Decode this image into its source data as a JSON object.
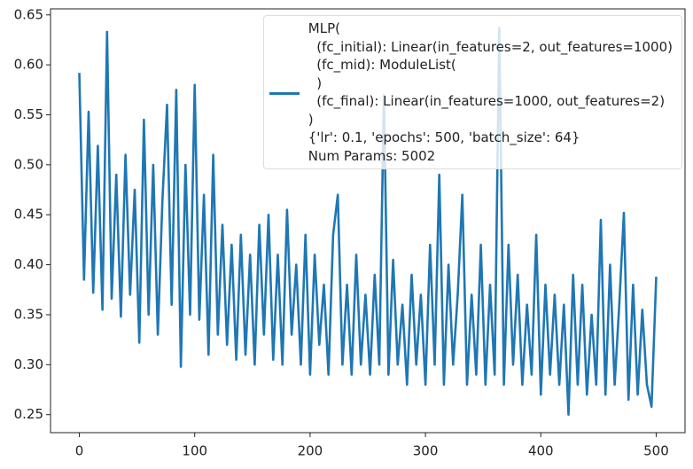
{
  "chart_data": {
    "type": "line",
    "x": [
      0,
      4,
      8,
      12,
      16,
      20,
      24,
      28,
      32,
      36,
      40,
      44,
      48,
      52,
      56,
      60,
      64,
      68,
      72,
      76,
      80,
      84,
      88,
      92,
      96,
      100,
      104,
      108,
      112,
      116,
      120,
      124,
      128,
      132,
      136,
      140,
      144,
      148,
      152,
      156,
      160,
      164,
      168,
      172,
      176,
      180,
      184,
      188,
      192,
      196,
      200,
      204,
      208,
      212,
      216,
      220,
      224,
      228,
      232,
      236,
      240,
      244,
      248,
      252,
      256,
      260,
      264,
      268,
      272,
      276,
      280,
      284,
      288,
      292,
      296,
      300,
      304,
      308,
      312,
      316,
      320,
      324,
      328,
      332,
      336,
      340,
      344,
      348,
      352,
      356,
      360,
      364,
      368,
      372,
      376,
      380,
      384,
      388,
      392,
      396,
      400,
      404,
      408,
      412,
      416,
      420,
      424,
      428,
      432,
      436,
      440,
      444,
      448,
      452,
      456,
      460,
      464,
      468,
      472,
      476,
      480,
      484,
      488,
      492,
      496,
      500
    ],
    "series": [
      {
        "name": "MLP(\n  (fc_initial): Linear(in_features=2, out_features=1000)\n  (fc_mid): ModuleList(\n  )\n  (fc_final): Linear(in_features=1000, out_features=2)\n)\n{'lr': 0.1, 'epochs': 500, 'batch_size': 64}\nNum Params: 5002",
        "color": "#1f77b4",
        "values": [
          0.592,
          0.385,
          0.553,
          0.372,
          0.519,
          0.355,
          0.633,
          0.366,
          0.49,
          0.348,
          0.51,
          0.37,
          0.475,
          0.322,
          0.545,
          0.35,
          0.5,
          0.33,
          0.465,
          0.56,
          0.36,
          0.575,
          0.298,
          0.5,
          0.35,
          0.58,
          0.345,
          0.47,
          0.31,
          0.51,
          0.33,
          0.44,
          0.32,
          0.42,
          0.305,
          0.43,
          0.31,
          0.41,
          0.3,
          0.44,
          0.33,
          0.45,
          0.305,
          0.41,
          0.3,
          0.455,
          0.33,
          0.4,
          0.3,
          0.43,
          0.29,
          0.41,
          0.32,
          0.38,
          0.29,
          0.43,
          0.47,
          0.3,
          0.38,
          0.29,
          0.41,
          0.3,
          0.37,
          0.29,
          0.39,
          0.3,
          0.57,
          0.29,
          0.405,
          0.3,
          0.36,
          0.28,
          0.39,
          0.3,
          0.37,
          0.28,
          0.42,
          0.3,
          0.49,
          0.28,
          0.4,
          0.3,
          0.37,
          0.47,
          0.28,
          0.37,
          0.29,
          0.42,
          0.28,
          0.38,
          0.29,
          0.637,
          0.28,
          0.42,
          0.3,
          0.39,
          0.28,
          0.36,
          0.29,
          0.43,
          0.27,
          0.38,
          0.29,
          0.37,
          0.28,
          0.36,
          0.25,
          0.39,
          0.28,
          0.38,
          0.27,
          0.35,
          0.28,
          0.445,
          0.27,
          0.4,
          0.28,
          0.36,
          0.452,
          0.265,
          0.38,
          0.27,
          0.355,
          0.28,
          0.258,
          0.388
        ]
      }
    ],
    "xlim": [
      -25,
      525
    ],
    "ylim": [
      0.232,
      0.656
    ],
    "xticks": [
      0,
      100,
      200,
      300,
      400,
      500
    ],
    "yticks": [
      0.25,
      {
        "value": 0.3,
        "label": "0.30"
      },
      0.35,
      {
        "value": 0.4,
        "label": "0.40"
      },
      0.45,
      {
        "value": 0.5,
        "label": "0.50"
      },
      0.55,
      {
        "value": 0.6,
        "label": "0.60"
      },
      0.65
    ],
    "legend": "upper right"
  }
}
